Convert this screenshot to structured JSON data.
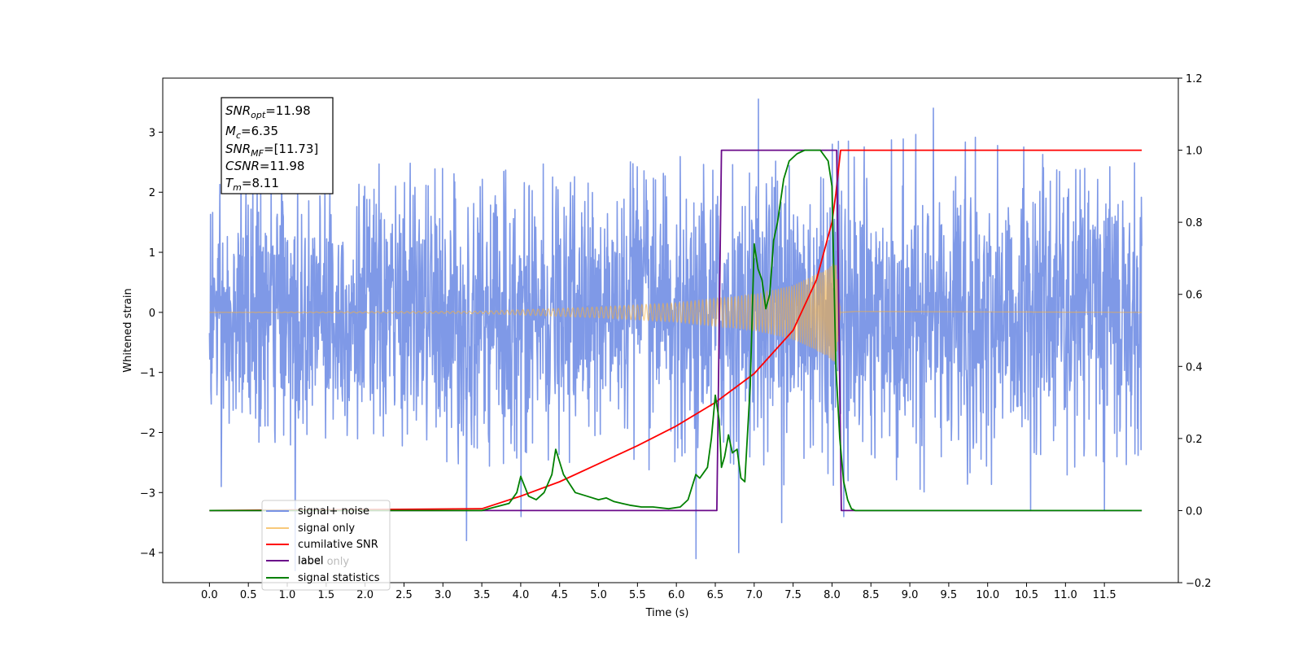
{
  "chart_data": {
    "type": "line",
    "xlabel": "Time (s)",
    "ylabel": "Whitened strain",
    "xlim": [
      -0.6,
      12.45
    ],
    "ylim_left": [
      -4.5,
      3.9
    ],
    "ylim_right": [
      -0.2,
      1.2
    ],
    "x_ticks": [
      0.0,
      0.5,
      1.0,
      1.5,
      2.0,
      2.5,
      3.0,
      3.5,
      4.0,
      4.5,
      5.0,
      5.5,
      6.0,
      6.5,
      7.0,
      7.5,
      8.0,
      8.5,
      9.0,
      9.5,
      10.0,
      10.5,
      11.0,
      11.5
    ],
    "x_tick_labels": [
      "0.0",
      "0.5",
      "1.0",
      "1.5",
      "2.0",
      "2.5",
      "3.0",
      "3.5",
      "4.0",
      "4.5",
      "5.0",
      "5.5",
      "6.0",
      "6.5",
      "7.0",
      "7.5",
      "8.0",
      "8.5",
      "9.0",
      "9.5",
      "10.0",
      "10.5",
      "11.0",
      "11.5"
    ],
    "y_left_ticks": [
      3,
      2,
      1,
      0,
      -1,
      -2,
      -3,
      -4
    ],
    "y_left_tick_labels": [
      "3",
      "2",
      "1",
      "0",
      "−1",
      "−2",
      "−3",
      "−4"
    ],
    "y_right_ticks": [
      1.2,
      1.0,
      0.8,
      0.6,
      0.4,
      0.2,
      0.0,
      -0.2
    ],
    "y_right_tick_labels": [
      "1.2",
      "1.0",
      "0.8",
      "0.6",
      "0.4",
      "0.2",
      "0.0",
      "−0.2"
    ],
    "info_box": {
      "snr_opt": "=11.98",
      "mc": "=6.35",
      "snr_mf": "=[11.73]",
      "csnr": "=11.98",
      "tm": "=8.11"
    },
    "legend": {
      "placement": "lower-left",
      "entries": [
        {
          "label": "signal+ noise",
          "color": "#7893e6"
        },
        {
          "label": "signal only",
          "color": "#f5b041"
        },
        {
          "label": "cumilative SNR",
          "color": "#ff0000"
        },
        {
          "label": "label",
          "color": "#6a0a8a"
        },
        {
          "label": "signal statistics",
          "color": "#008000"
        }
      ],
      "ghost_text": "label only"
    },
    "series": [
      {
        "name": "signal+ noise",
        "axis": "left",
        "description_kind": "noise",
        "x_range": [
          0.0,
          11.98
        ],
        "envelope": [
          [
            0.0,
            2.4
          ],
          [
            6.5,
            2.7
          ],
          [
            7.5,
            3.0
          ],
          [
            8.0,
            3.2
          ],
          [
            11.98,
            2.6
          ]
        ],
        "extreme_points": [
          [
            0.15,
            -2.9
          ],
          [
            1.1,
            -4.3
          ],
          [
            3.3,
            -3.8
          ],
          [
            4.0,
            -3.4
          ],
          [
            6.25,
            -4.1
          ],
          [
            6.8,
            -4.0
          ],
          [
            7.05,
            3.55
          ],
          [
            7.35,
            -3.5
          ],
          [
            8.0,
            2.8
          ],
          [
            8.15,
            -3.4
          ],
          [
            9.3,
            3.4
          ],
          [
            10.55,
            -3.3
          ],
          [
            11.5,
            -3.3
          ]
        ]
      },
      {
        "name": "signal only",
        "axis": "left",
        "description_kind": "chirp",
        "x_range": [
          0.0,
          11.98
        ],
        "merger_time": 8.11,
        "amplitude_points": [
          [
            0.0,
            0.0
          ],
          [
            3.5,
            0.02
          ],
          [
            5.0,
            0.09
          ],
          [
            6.0,
            0.16
          ],
          [
            7.0,
            0.3
          ],
          [
            7.5,
            0.45
          ],
          [
            7.9,
            0.7
          ],
          [
            8.05,
            0.85
          ],
          [
            8.11,
            0.0
          ],
          [
            8.3,
            0.02
          ],
          [
            11.98,
            0.0
          ]
        ]
      },
      {
        "name": "cumilative SNR",
        "axis": "right",
        "x": [
          0.0,
          3.5,
          4.0,
          4.5,
          5.0,
          5.5,
          6.0,
          6.5,
          7.0,
          7.5,
          7.8,
          8.0,
          8.05,
          8.11,
          11.98
        ],
        "y": [
          0.0,
          0.005,
          0.04,
          0.08,
          0.13,
          0.18,
          0.235,
          0.3,
          0.38,
          0.5,
          0.64,
          0.8,
          0.88,
          1.0,
          1.0
        ]
      },
      {
        "name": "label",
        "axis": "right",
        "x": [
          0.0,
          6.52,
          6.58,
          8.06,
          8.12,
          11.98
        ],
        "y": [
          0.0,
          0.0,
          1.0,
          1.0,
          0.0,
          0.0
        ]
      },
      {
        "name": "signal statistics",
        "axis": "right",
        "x": [
          0.0,
          3.5,
          3.85,
          3.95,
          4.0,
          4.1,
          4.2,
          4.3,
          4.4,
          4.45,
          4.55,
          4.7,
          4.85,
          5.0,
          5.1,
          5.2,
          5.3,
          5.4,
          5.55,
          5.7,
          5.9,
          6.05,
          6.15,
          6.25,
          6.3,
          6.4,
          6.45,
          6.5,
          6.55,
          6.58,
          6.62,
          6.67,
          6.72,
          6.78,
          6.83,
          6.88,
          6.95,
          7.0,
          7.05,
          7.1,
          7.15,
          7.2,
          7.25,
          7.3,
          7.38,
          7.45,
          7.55,
          7.65,
          7.75,
          7.85,
          7.95,
          8.0,
          8.05,
          8.1,
          8.15,
          8.2,
          8.25,
          8.3,
          8.4,
          11.98
        ],
        "y": [
          0.0,
          0.0,
          0.02,
          0.05,
          0.095,
          0.04,
          0.03,
          0.05,
          0.1,
          0.17,
          0.1,
          0.05,
          0.04,
          0.03,
          0.035,
          0.025,
          0.02,
          0.015,
          0.01,
          0.01,
          0.005,
          0.01,
          0.03,
          0.1,
          0.09,
          0.12,
          0.2,
          0.32,
          0.25,
          0.12,
          0.15,
          0.21,
          0.16,
          0.17,
          0.09,
          0.08,
          0.35,
          0.74,
          0.67,
          0.64,
          0.56,
          0.6,
          0.75,
          0.8,
          0.92,
          0.97,
          0.99,
          1.0,
          1.0,
          1.0,
          0.97,
          0.9,
          0.4,
          0.2,
          0.08,
          0.03,
          0.005,
          0.0,
          0.0,
          0.0
        ]
      }
    ]
  }
}
